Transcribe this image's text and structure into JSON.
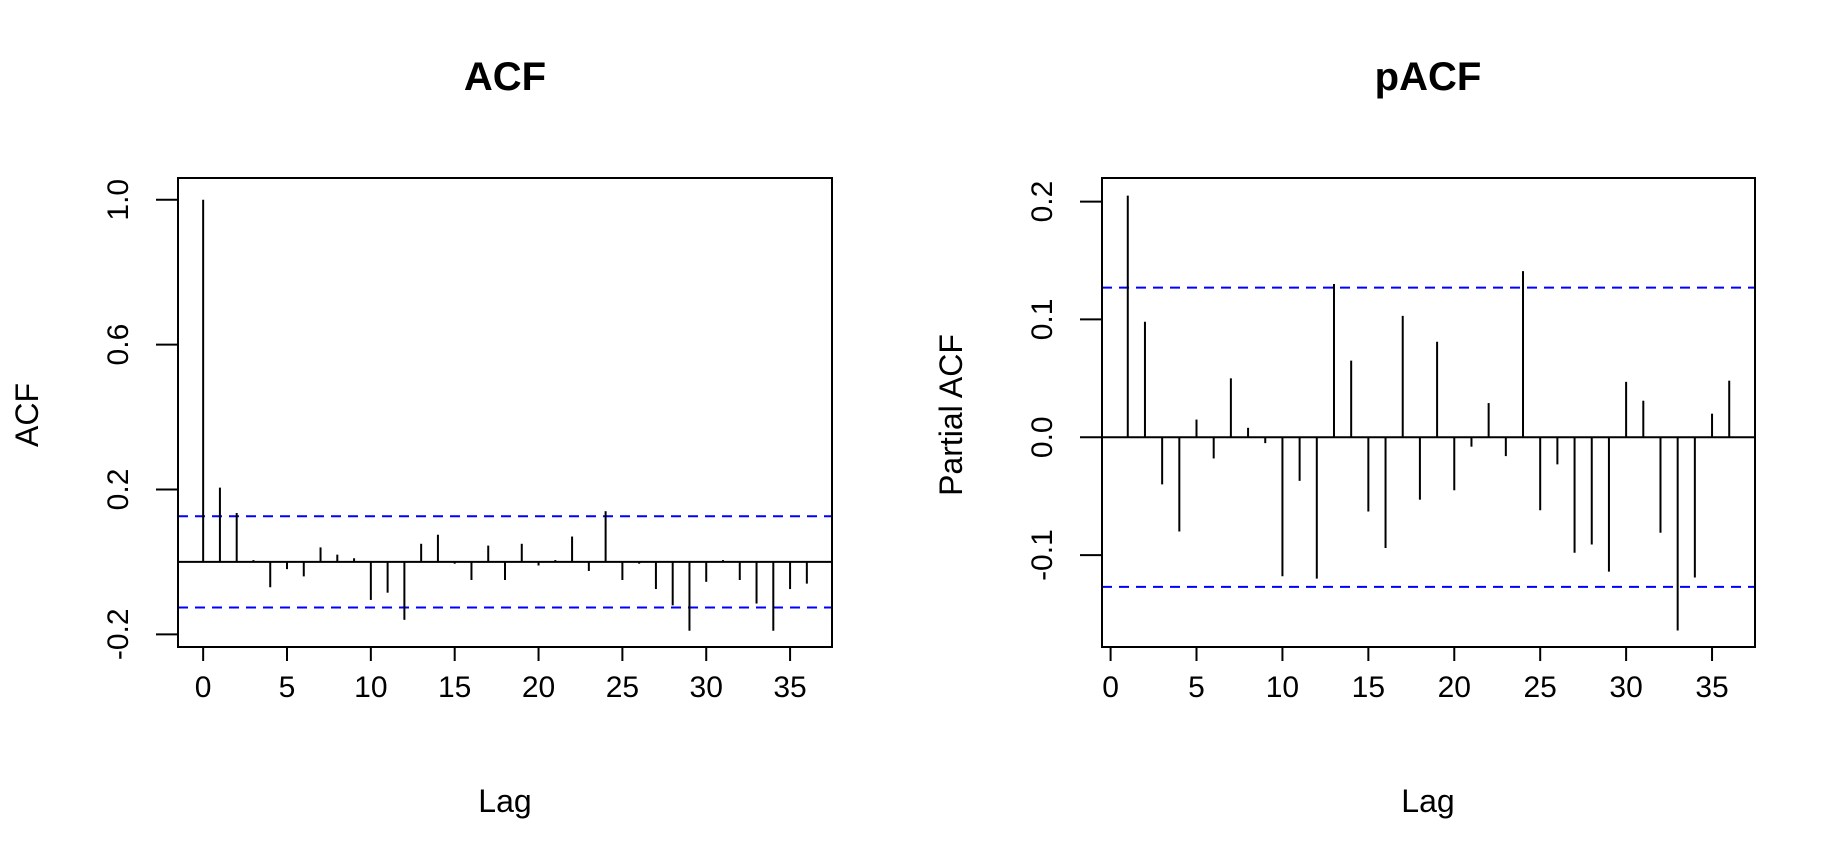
{
  "chart_data": [
    {
      "type": "bar",
      "title": "ACF",
      "xlabel": "Lag",
      "ylabel": "ACF",
      "xlim": [
        -1.5,
        37.5
      ],
      "ylim": [
        -0.235,
        1.06
      ],
      "xticks": [
        0,
        5,
        10,
        15,
        20,
        25,
        30,
        35
      ],
      "yticks": [
        -0.2,
        0.2,
        0.6,
        1.0
      ],
      "ytick_labels": [
        "-0.2",
        "0.2",
        "0.6",
        "1.0"
      ],
      "ci": 0.126,
      "ci_color": "#0000ff",
      "bar_color": "#000000",
      "grid": false,
      "legend": "none",
      "x": [
        0,
        1,
        2,
        3,
        4,
        5,
        6,
        7,
        8,
        9,
        10,
        11,
        12,
        13,
        14,
        15,
        16,
        17,
        18,
        19,
        20,
        21,
        22,
        23,
        24,
        25,
        26,
        27,
        28,
        29,
        30,
        31,
        32,
        33,
        34,
        35,
        36
      ],
      "values": [
        1.0,
        0.205,
        0.135,
        0.005,
        -0.07,
        -0.02,
        -0.04,
        0.04,
        0.02,
        0.01,
        -0.105,
        -0.085,
        -0.16,
        0.05,
        0.075,
        -0.005,
        -0.05,
        0.045,
        -0.05,
        0.05,
        -0.01,
        0.005,
        0.07,
        -0.025,
        0.14,
        -0.05,
        -0.005,
        -0.075,
        -0.12,
        -0.19,
        -0.055,
        0.005,
        -0.05,
        -0.115,
        -0.19,
        -0.075,
        -0.06
      ]
    },
    {
      "type": "bar",
      "title": "pACF",
      "xlabel": "Lag",
      "ylabel": "Partial ACF",
      "xlim": [
        -0.5,
        37.5
      ],
      "ylim": [
        -0.178,
        0.22
      ],
      "xticks": [
        0,
        5,
        10,
        15,
        20,
        25,
        30,
        35
      ],
      "yticks": [
        -0.1,
        0.0,
        0.1,
        0.2
      ],
      "ytick_labels": [
        "-0.1",
        "0.0",
        "0.1",
        "0.2"
      ],
      "ci": 0.127,
      "ci_color": "#0000ff",
      "bar_color": "#000000",
      "grid": false,
      "legend": "none",
      "x": [
        1,
        2,
        3,
        4,
        5,
        6,
        7,
        8,
        9,
        10,
        11,
        12,
        13,
        14,
        15,
        16,
        17,
        18,
        19,
        20,
        21,
        22,
        23,
        24,
        25,
        26,
        27,
        28,
        29,
        30,
        31,
        32,
        33,
        34,
        35,
        36
      ],
      "values": [
        0.205,
        0.098,
        -0.04,
        -0.08,
        0.015,
        -0.018,
        0.05,
        0.008,
        -0.005,
        -0.118,
        -0.037,
        -0.12,
        0.13,
        0.065,
        -0.063,
        -0.094,
        0.103,
        -0.053,
        0.081,
        -0.045,
        -0.008,
        0.029,
        -0.016,
        0.141,
        -0.062,
        -0.023,
        -0.098,
        -0.091,
        -0.114,
        0.047,
        0.031,
        -0.081,
        -0.164,
        -0.119,
        0.02,
        0.048
      ]
    }
  ]
}
